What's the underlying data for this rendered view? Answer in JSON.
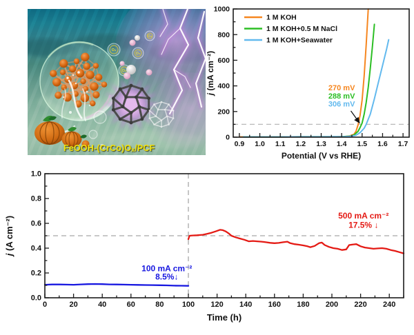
{
  "illustration": {
    "label": "FeOOH-(CrCo)Oₓ/PCF",
    "o2_label": "O₂"
  },
  "chart_data": [
    {
      "id": "lsv",
      "type": "line",
      "title": "",
      "xlabel": "Potential (V vs RHE)",
      "ylabel": {
        "italic": "j",
        "rest": " (mA cm⁻²)"
      },
      "xlim": [
        0.87,
        1.73
      ],
      "ylim": [
        0,
        1000
      ],
      "xticks": [
        0.9,
        1.0,
        1.1,
        1.2,
        1.3,
        1.4,
        1.5,
        1.6,
        1.7
      ],
      "yticks": [
        0,
        200,
        400,
        600,
        800,
        1000
      ],
      "xtick_decimals": 1,
      "ytick_decimals": 0,
      "x_minor_step": 0.05,
      "y_minor_step": 100,
      "grid": false,
      "legend": true,
      "legend_position": "top-left",
      "ref_lines": [
        {
          "axis": "y",
          "value": 100,
          "style": "dashed",
          "color": "#b8b8b8"
        }
      ],
      "series": [
        {
          "name": "1 M KOH",
          "color": "#F6861F",
          "points": [
            [
              0.9,
              2
            ],
            [
              1.0,
              2
            ],
            [
              1.1,
              2
            ],
            [
              1.2,
              3
            ],
            [
              1.3,
              3
            ],
            [
              1.38,
              4
            ],
            [
              1.42,
              6
            ],
            [
              1.44,
              10
            ],
            [
              1.46,
              22
            ],
            [
              1.47,
              45
            ],
            [
              1.48,
              95
            ],
            [
              1.49,
              170
            ],
            [
              1.5,
              290
            ],
            [
              1.51,
              480
            ],
            [
              1.52,
              720
            ],
            [
              1.53,
              1000
            ]
          ]
        },
        {
          "name": "1 M KOH+0.5 M NaCl",
          "color": "#2BBE23",
          "points": [
            [
              0.92,
              2
            ],
            [
              1.0,
              2
            ],
            [
              1.1,
              2
            ],
            [
              1.2,
              3
            ],
            [
              1.3,
              3
            ],
            [
              1.4,
              4
            ],
            [
              1.44,
              8
            ],
            [
              1.46,
              16
            ],
            [
              1.48,
              45
            ],
            [
              1.49,
              75
            ],
            [
              1.5,
              110
            ],
            [
              1.51,
              180
            ],
            [
              1.52,
              270
            ],
            [
              1.53,
              390
            ],
            [
              1.54,
              540
            ],
            [
              1.55,
              700
            ],
            [
              1.56,
              880
            ]
          ]
        },
        {
          "name": "1 M KOH+Seawater",
          "color": "#62B9EE",
          "points": [
            [
              0.92,
              2
            ],
            [
              1.0,
              2
            ],
            [
              1.1,
              2
            ],
            [
              1.2,
              3
            ],
            [
              1.3,
              3
            ],
            [
              1.42,
              5
            ],
            [
              1.45,
              8
            ],
            [
              1.47,
              15
            ],
            [
              1.49,
              35
            ],
            [
              1.51,
              70
            ],
            [
              1.52,
              100
            ],
            [
              1.54,
              180
            ],
            [
              1.56,
              300
            ],
            [
              1.58,
              430
            ],
            [
              1.6,
              560
            ],
            [
              1.62,
              690
            ],
            [
              1.63,
              760
            ]
          ]
        }
      ],
      "annotations": [
        {
          "text": "270 mV",
          "color": "#F6861F",
          "x": 1.4,
          "y": 365
        },
        {
          "text": "288 mV",
          "color": "#2BBE23",
          "x": 1.4,
          "y": 302
        },
        {
          "text": "306 mV",
          "color": "#62B9EE",
          "x": 1.4,
          "y": 239
        },
        {
          "arrow": true,
          "x1": 1.445,
          "y1": 205,
          "x2": 1.487,
          "y2": 112
        }
      ]
    },
    {
      "id": "stability",
      "type": "line",
      "title": "",
      "xlabel": "Time (h)",
      "ylabel": {
        "italic": "j",
        "rest": " (A cm⁻²)"
      },
      "xlim": [
        0,
        250
      ],
      "ylim": [
        0,
        1.0
      ],
      "xticks": [
        0,
        20,
        40,
        60,
        80,
        100,
        120,
        140,
        160,
        180,
        200,
        220,
        240
      ],
      "yticks": [
        0.0,
        0.2,
        0.4,
        0.6,
        0.8,
        1.0
      ],
      "xtick_decimals": 0,
      "ytick_decimals": 1,
      "x_minor_step": 10,
      "y_minor_step": 0.1,
      "grid": false,
      "legend": false,
      "ref_lines": [
        {
          "axis": "x",
          "value": 100,
          "style": "dashed",
          "color": "#a8a8a8"
        },
        {
          "axis": "y",
          "value": 0.5,
          "style": "dashed",
          "color": "#a8a8a8"
        }
      ],
      "series": [
        {
          "name": "100 mA cm⁻² hold",
          "color": "#1717E0",
          "points": [
            [
              0,
              0.105
            ],
            [
              5,
              0.107
            ],
            [
              10,
              0.107
            ],
            [
              15,
              0.106
            ],
            [
              20,
              0.105
            ],
            [
              25,
              0.108
            ],
            [
              30,
              0.11
            ],
            [
              35,
              0.111
            ],
            [
              40,
              0.11
            ],
            [
              45,
              0.108
            ],
            [
              50,
              0.107
            ],
            [
              55,
              0.106
            ],
            [
              60,
              0.105
            ],
            [
              65,
              0.104
            ],
            [
              70,
              0.103
            ],
            [
              75,
              0.102
            ],
            [
              80,
              0.101
            ],
            [
              85,
              0.1
            ],
            [
              90,
              0.098
            ],
            [
              95,
              0.097
            ],
            [
              100,
              0.096
            ]
          ]
        },
        {
          "name": "500 mA cm⁻² hold",
          "color": "#E41A14",
          "points": [
            [
              100,
              0.472
            ],
            [
              100.8,
              0.5
            ],
            [
              103,
              0.502
            ],
            [
              106,
              0.504
            ],
            [
              110,
              0.508
            ],
            [
              113,
              0.515
            ],
            [
              116,
              0.524
            ],
            [
              119,
              0.535
            ],
            [
              122,
              0.548
            ],
            [
              124,
              0.545
            ],
            [
              126,
              0.535
            ],
            [
              128,
              0.52
            ],
            [
              130,
              0.5
            ],
            [
              133,
              0.487
            ],
            [
              136,
              0.477
            ],
            [
              139,
              0.468
            ],
            [
              142,
              0.455
            ],
            [
              145,
              0.458
            ],
            [
              148,
              0.455
            ],
            [
              151,
              0.452
            ],
            [
              154,
              0.448
            ],
            [
              157,
              0.443
            ],
            [
              160,
              0.44
            ],
            [
              163,
              0.442
            ],
            [
              166,
              0.448
            ],
            [
              169,
              0.452
            ],
            [
              171,
              0.44
            ],
            [
              174,
              0.432
            ],
            [
              177,
              0.428
            ],
            [
              180,
              0.422
            ],
            [
              183,
              0.415
            ],
            [
              185,
              0.408
            ],
            [
              188,
              0.418
            ],
            [
              191,
              0.44
            ],
            [
              193,
              0.445
            ],
            [
              195,
              0.425
            ],
            [
              198,
              0.41
            ],
            [
              201,
              0.4
            ],
            [
              204,
              0.395
            ],
            [
              207,
              0.385
            ],
            [
              210,
              0.39
            ],
            [
              212,
              0.425
            ],
            [
              215,
              0.43
            ],
            [
              217,
              0.432
            ],
            [
              220,
              0.415
            ],
            [
              223,
              0.405
            ],
            [
              226,
              0.4
            ],
            [
              229,
              0.395
            ],
            [
              232,
              0.398
            ],
            [
              235,
              0.4
            ],
            [
              238,
              0.395
            ],
            [
              241,
              0.385
            ],
            [
              244,
              0.378
            ],
            [
              247,
              0.368
            ],
            [
              250,
              0.358
            ]
          ]
        }
      ],
      "annotations": [
        {
          "text": "100 mA cm⁻²",
          "color": "#1717E0",
          "x": 85,
          "y": 0.215
        },
        {
          "text": "8.5%↓",
          "color": "#1717E0",
          "x": 85,
          "y": 0.148
        },
        {
          "text": "500 mA cm⁻²",
          "color": "#E41A14",
          "x": 222,
          "y": 0.64
        },
        {
          "text": "17.5% ↓",
          "color": "#E41A14",
          "x": 222,
          "y": 0.565
        }
      ]
    }
  ]
}
